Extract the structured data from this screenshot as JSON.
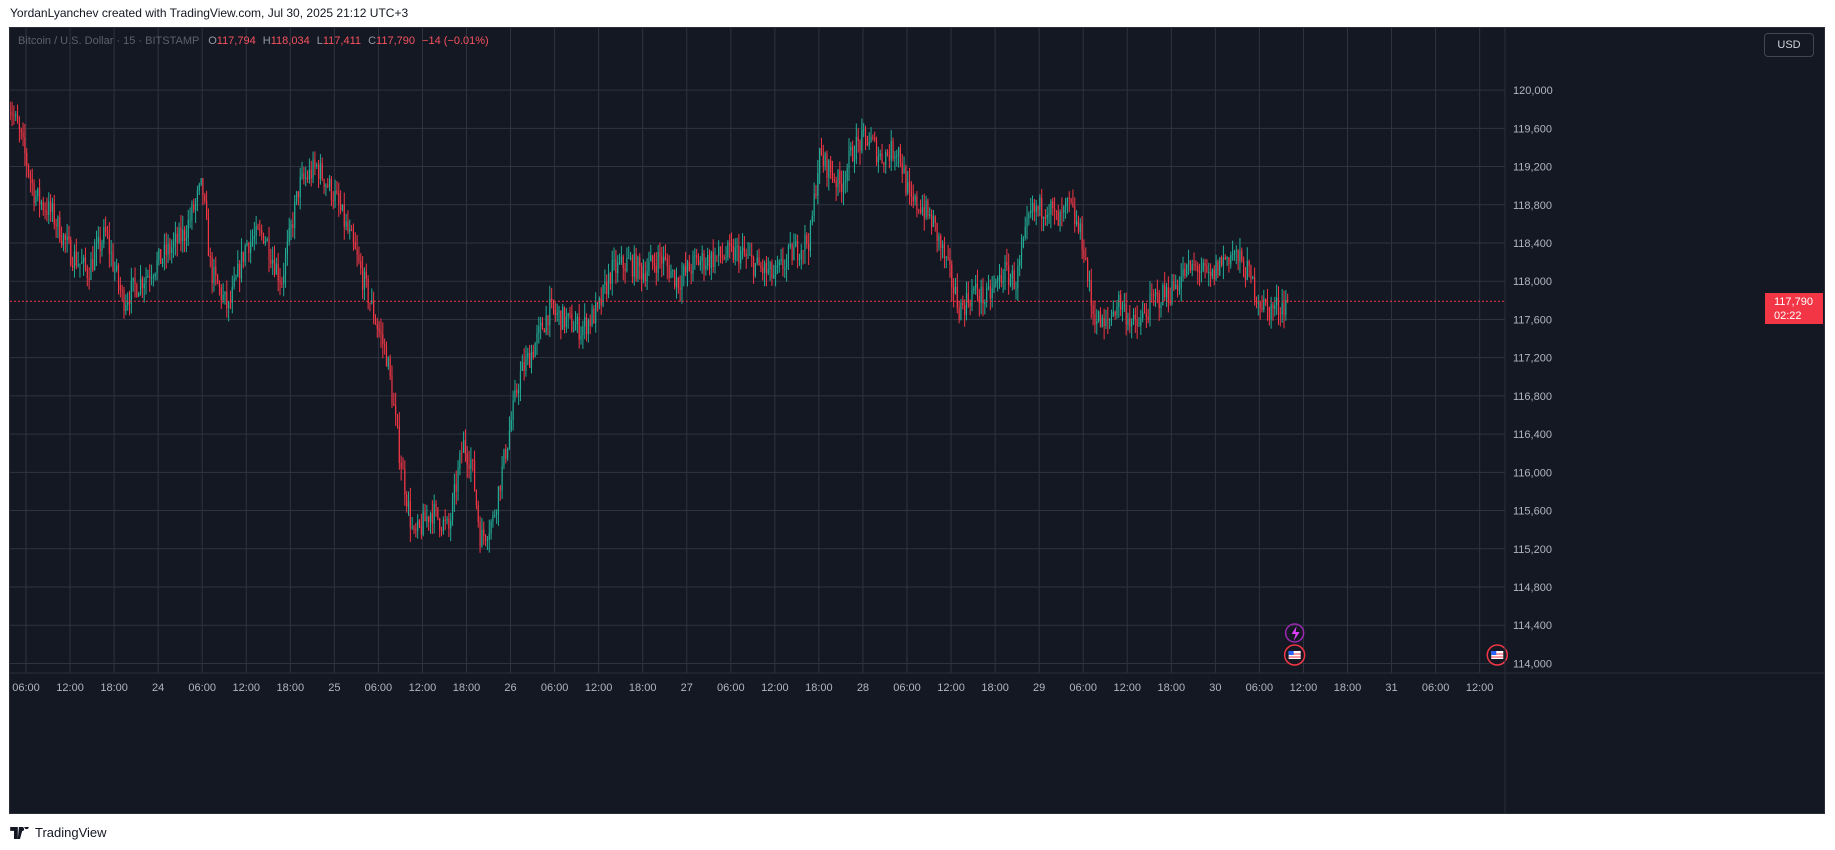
{
  "header": {
    "attribution": "YordanLyanchev created with TradingView.com, Jul 30, 2025 21:12 UTC+3"
  },
  "legend": {
    "symbol": "Bitcoin / U.S. Dollar · 15 · BITSTAMP",
    "o_label": "O",
    "o_value": "117,794",
    "h_label": "H",
    "h_value": "118,034",
    "l_label": "L",
    "l_value": "117,411",
    "c_label": "C",
    "c_value": "117,790",
    "change": "−14 (−0.01%)"
  },
  "currency_button": "USD",
  "last_price": {
    "price": "117,790",
    "countdown": "02:22"
  },
  "footer": {
    "brand": "TradingView"
  },
  "colors": {
    "background": "#141823",
    "grid": "#2f3340",
    "up": "#22ab94",
    "down": "#f23645",
    "text": "#b2b5be"
  },
  "chart_data": {
    "type": "candlestick",
    "symbol": "Bitcoin / U.S. Dollar",
    "interval": "15",
    "exchange": "BITSTAMP",
    "ylim": [
      113900,
      120650
    ],
    "y_ticks": [
      "114,000",
      "114,400",
      "114,800",
      "115,200",
      "115,600",
      "116,000",
      "116,400",
      "116,800",
      "117,200",
      "117,600",
      "118,000",
      "118,400",
      "118,800",
      "119,200",
      "119,600",
      "120,000"
    ],
    "x_ticks": [
      {
        "label": "06:00",
        "t": 0.0
      },
      {
        "label": "12:00",
        "t": 0.25
      },
      {
        "label": "18:00",
        "t": 0.5
      },
      {
        "label": "24",
        "t": 0.75
      },
      {
        "label": "06:00",
        "t": 1.0
      },
      {
        "label": "12:00",
        "t": 1.25
      },
      {
        "label": "18:00",
        "t": 1.5
      },
      {
        "label": "25",
        "t": 1.75
      },
      {
        "label": "06:00",
        "t": 2.0
      },
      {
        "label": "12:00",
        "t": 2.25
      },
      {
        "label": "18:00",
        "t": 2.5
      },
      {
        "label": "26",
        "t": 2.75
      },
      {
        "label": "06:00",
        "t": 3.0
      },
      {
        "label": "12:00",
        "t": 3.25
      },
      {
        "label": "18:00",
        "t": 3.5
      },
      {
        "label": "27",
        "t": 3.75
      },
      {
        "label": "06:00",
        "t": 4.0
      },
      {
        "label": "12:00",
        "t": 4.25
      },
      {
        "label": "18:00",
        "t": 4.5
      },
      {
        "label": "28",
        "t": 4.75
      },
      {
        "label": "06:00",
        "t": 5.0
      },
      {
        "label": "12:00",
        "t": 5.25
      },
      {
        "label": "18:00",
        "t": 5.5
      },
      {
        "label": "29",
        "t": 5.75
      },
      {
        "label": "06:00",
        "t": 6.0
      },
      {
        "label": "12:00",
        "t": 6.25
      },
      {
        "label": "18:00",
        "t": 6.5
      },
      {
        "label": "30",
        "t": 6.75
      },
      {
        "label": "06:00",
        "t": 7.0
      },
      {
        "label": "12:00",
        "t": 7.25
      },
      {
        "label": "18:00",
        "t": 7.5
      },
      {
        "label": "31",
        "t": 7.75
      },
      {
        "label": "06:00",
        "t": 8.0
      },
      {
        "label": "12:00",
        "t": 8.25
      }
    ],
    "last_price": 117790,
    "t_start": -0.1,
    "t_end": 8.35,
    "price_path": [
      [
        -0.1,
        119900
      ],
      [
        -0.03,
        119500
      ],
      [
        0.05,
        118900
      ],
      [
        0.15,
        118700
      ],
      [
        0.25,
        118300
      ],
      [
        0.35,
        118100
      ],
      [
        0.45,
        118500
      ],
      [
        0.55,
        117800
      ],
      [
        0.65,
        118000
      ],
      [
        0.8,
        118300
      ],
      [
        0.9,
        118500
      ],
      [
        1.0,
        119000
      ],
      [
        1.05,
        118100
      ],
      [
        1.15,
        117700
      ],
      [
        1.25,
        118400
      ],
      [
        1.35,
        118500
      ],
      [
        1.45,
        118000
      ],
      [
        1.55,
        119000
      ],
      [
        1.65,
        119200
      ],
      [
        1.75,
        118900
      ],
      [
        1.85,
        118400
      ],
      [
        1.95,
        117800
      ],
      [
        2.05,
        117200
      ],
      [
        2.12,
        116200
      ],
      [
        2.2,
        115300
      ],
      [
        2.3,
        115600
      ],
      [
        2.4,
        115400
      ],
      [
        2.48,
        116300
      ],
      [
        2.53,
        116100
      ],
      [
        2.58,
        115300
      ],
      [
        2.65,
        115500
      ],
      [
        2.72,
        116200
      ],
      [
        2.8,
        117000
      ],
      [
        2.88,
        117300
      ],
      [
        2.97,
        117700
      ],
      [
        3.05,
        117600
      ],
      [
        3.15,
        117500
      ],
      [
        3.25,
        117700
      ],
      [
        3.32,
        118100
      ],
      [
        3.42,
        118200
      ],
      [
        3.5,
        118100
      ],
      [
        3.6,
        118250
      ],
      [
        3.7,
        118000
      ],
      [
        3.8,
        118200
      ],
      [
        3.92,
        118250
      ],
      [
        4.05,
        118300
      ],
      [
        4.15,
        118150
      ],
      [
        4.25,
        118050
      ],
      [
        4.35,
        118300
      ],
      [
        4.45,
        118450
      ],
      [
        4.5,
        119300
      ],
      [
        4.55,
        119200
      ],
      [
        4.62,
        119000
      ],
      [
        4.7,
        119400
      ],
      [
        4.78,
        119500
      ],
      [
        4.85,
        119300
      ],
      [
        4.95,
        119400
      ],
      [
        5.02,
        118800
      ],
      [
        5.08,
        118800
      ],
      [
        5.15,
        118600
      ],
      [
        5.22,
        118200
      ],
      [
        5.3,
        117700
      ],
      [
        5.38,
        117900
      ],
      [
        5.45,
        117800
      ],
      [
        5.55,
        118100
      ],
      [
        5.62,
        118000
      ],
      [
        5.7,
        118700
      ],
      [
        5.8,
        118800
      ],
      [
        5.86,
        118600
      ],
      [
        5.92,
        118800
      ],
      [
        6.0,
        118400
      ],
      [
        6.05,
        117700
      ],
      [
        6.12,
        117500
      ],
      [
        6.2,
        117800
      ],
      [
        6.3,
        117500
      ],
      [
        6.4,
        117800
      ],
      [
        6.5,
        117900
      ],
      [
        6.58,
        118100
      ],
      [
        6.65,
        118150
      ],
      [
        6.72,
        118000
      ],
      [
        6.78,
        118200
      ],
      [
        6.85,
        118300
      ],
      [
        6.93,
        118100
      ],
      [
        7.0,
        117800
      ],
      [
        7.05,
        117700
      ],
      [
        7.12,
        117750
      ],
      [
        7.17,
        117790
      ]
    ]
  }
}
